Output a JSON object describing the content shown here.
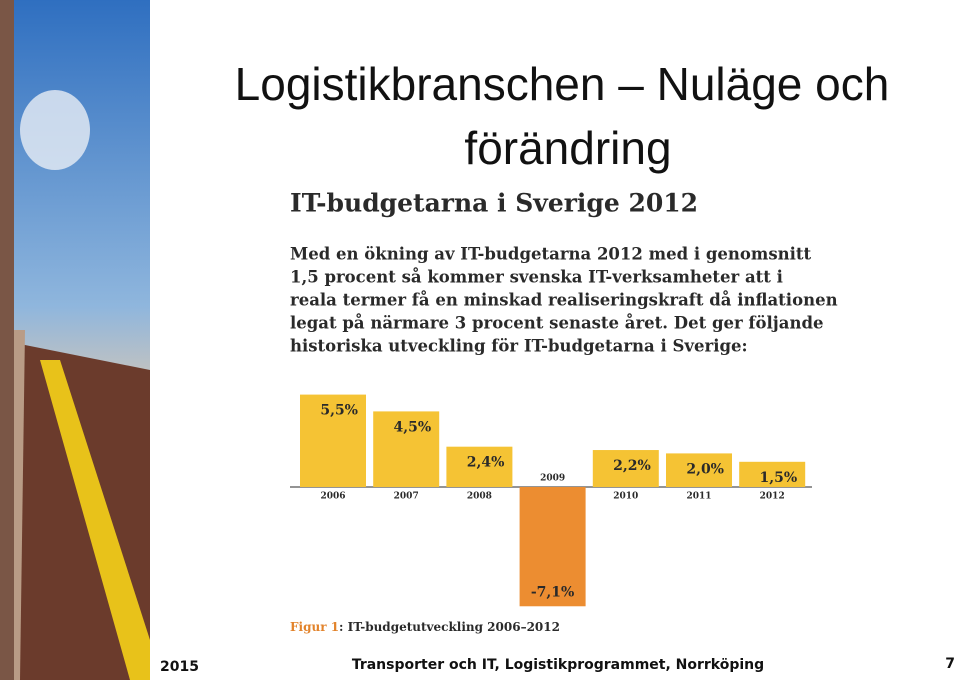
{
  "slide": {
    "title_lines": [
      "Logistikbranschen – Nuläge och",
      "förändring"
    ],
    "footer_left": "2015",
    "footer_center": "Transporter och IT, Logistikprogrammet, Norrköping",
    "page_number": "7"
  },
  "article": {
    "heading": "IT-budgetarna i Sverige 2012",
    "body_lines": [
      "Med en ökning av IT-budgetarna 2012 med i genomsnitt",
      "1,5 procent så kommer svenska IT-verksamheter att i",
      "reala termer få en minskad realiseringskraft då inflationen",
      "legat på närmare 3 procent senaste året. Det ger följande",
      "historiska utveckling för IT-budgetarna i Sverige:"
    ],
    "caption_label": "Figur 1",
    "caption_text": ": IT-budgetutveckling 2006–2012"
  },
  "chart_data": {
    "type": "bar",
    "categories": [
      "2006",
      "2007",
      "2008",
      "2009",
      "2010",
      "2011",
      "2012"
    ],
    "values": [
      5.5,
      4.5,
      2.4,
      -7.1,
      2.2,
      2.0,
      1.5
    ],
    "value_labels": [
      "5,5%",
      "4,5%",
      "2,4%",
      "-7,1%",
      "2,2%",
      "2,0%",
      "1,5%"
    ],
    "color": "#f5c334",
    "negative_color": "#ec8d31"
  }
}
